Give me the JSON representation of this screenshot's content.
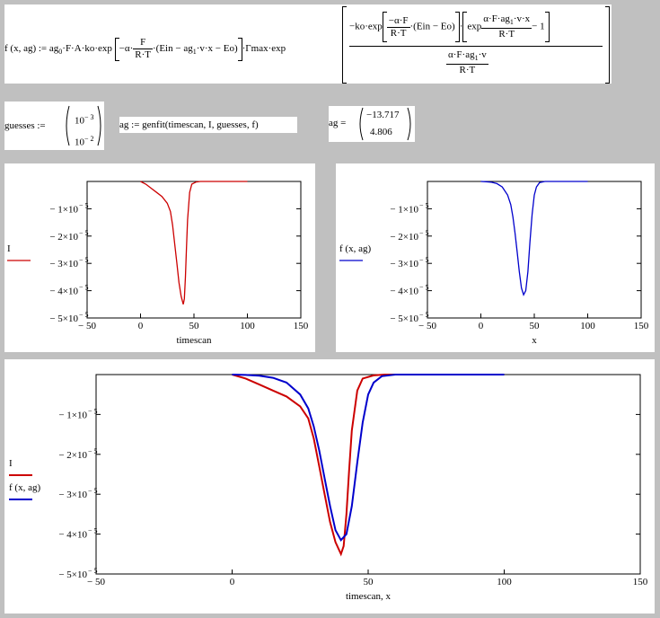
{
  "formula": {
    "lhs": "f (x, ag)",
    "assign": ":=",
    "prefactor": "ag",
    "prefactor_sub": "0",
    "terms": "·F·A·ko·exp",
    "exp1_minus_alpha": "−α·",
    "exp1_num": "F",
    "exp1_den": "R·T",
    "exp1_paren": "·(Ein  −  ag",
    "exp1_sub": "1",
    "exp1_tail": "·v·x  −  Eo)",
    "gamma": "·Γmax·exp",
    "big_num_lead": "−ko·exp",
    "inner_num": "−α·F",
    "inner_den": "R·T",
    "inner_tail": "·(Ein − Eo)",
    "exp2_lead": "exp",
    "exp2_num": "α·F·ag",
    "exp2_num_sub": "1",
    "exp2_num_tail": "·v·x",
    "exp2_den": "R·T",
    "minus_one": "− 1",
    "big_den_num": "α·F·ag",
    "big_den_sub": "1",
    "big_den_tail": "·v",
    "big_den_den": "R·T"
  },
  "guesses": {
    "label": "guesses :=",
    "v1_base": "10",
    "v1_exp": "− 3",
    "v2_base": "10",
    "v2_exp": "− 2"
  },
  "genfit": {
    "text": "ag := genfit(timescan, I, guesses, f)"
  },
  "result": {
    "label": "ag =",
    "v1": "−13.717",
    "v2": "4.806"
  },
  "plot1": {
    "xlabel": "timescan",
    "legend": "I"
  },
  "plot2": {
    "xlabel": "x",
    "legend": "f (x, ag)"
  },
  "plot3": {
    "xlabel": "timescan, x",
    "legend1": "I",
    "legend2": "f (x, ag)"
  },
  "chart_data": [
    {
      "type": "line",
      "xlim": [
        -50,
        150
      ],
      "ylim": [
        -5e-05,
        0
      ],
      "xticks": [
        "− 50",
        "0",
        "50",
        "100",
        "150"
      ],
      "yticks": [
        "− 1×10",
        "− 2×10",
        "− 3×10",
        "− 4×10",
        "− 5×10"
      ],
      "ytick_exp": "− 5",
      "xlabel": "timescan",
      "series": [
        {
          "name": "I",
          "color": "#cc0000",
          "x": [
            0,
            5,
            10,
            15,
            20,
            25,
            28,
            30,
            32,
            34,
            36,
            38,
            40,
            41,
            42,
            43,
            44,
            46,
            48,
            52,
            56,
            60,
            70,
            80,
            100
          ],
          "y": [
            0,
            -1e-06,
            -2.5e-06,
            -4e-06,
            -5.5e-06,
            -8e-06,
            -1.1e-05,
            -1.6e-05,
            -2.3e-05,
            -3e-05,
            -3.7e-05,
            -4.2e-05,
            -4.5e-05,
            -4.3e-05,
            -3.5e-05,
            -2.4e-05,
            -1.4e-05,
            -4e-06,
            -1e-06,
            -2e-07,
            0,
            0,
            0,
            0,
            0
          ]
        }
      ]
    },
    {
      "type": "line",
      "xlim": [
        -50,
        150
      ],
      "ylim": [
        -5e-05,
        0
      ],
      "xticks": [
        "− 50",
        "0",
        "50",
        "100",
        "150"
      ],
      "yticks": [
        "− 1×10",
        "− 2×10",
        "− 3×10",
        "− 4×10",
        "− 5×10"
      ],
      "ytick_exp": "− 5",
      "xlabel": "x",
      "series": [
        {
          "name": "f (x, ag)",
          "color": "#0000cc",
          "x": [
            0,
            5,
            10,
            15,
            20,
            25,
            28,
            30,
            32,
            34,
            36,
            38,
            40,
            42,
            44,
            46,
            48,
            50,
            52,
            55,
            60,
            70,
            80,
            100
          ],
          "y": [
            0,
            -1e-07,
            -3e-07,
            -8e-07,
            -2e-06,
            -5e-06,
            -8.5e-06,
            -1.3e-05,
            -1.9e-05,
            -2.6e-05,
            -3.3e-05,
            -3.9e-05,
            -4.15e-05,
            -4e-05,
            -3.3e-05,
            -2.2e-05,
            -1.2e-05,
            -5e-06,
            -2e-06,
            -4e-07,
            0,
            0,
            0,
            0
          ]
        }
      ]
    },
    {
      "type": "line",
      "xlim": [
        -50,
        150
      ],
      "ylim": [
        -5e-05,
        0
      ],
      "xticks": [
        "− 50",
        "0",
        "50",
        "100",
        "150"
      ],
      "yticks": [
        "− 1×10",
        "− 2×10",
        "− 3×10",
        "− 4×10",
        "− 5×10"
      ],
      "ytick_exp": "− 5",
      "xlabel": "timescan, x",
      "series": [
        {
          "name": "I",
          "color": "#cc0000",
          "x": [
            0,
            5,
            10,
            15,
            20,
            25,
            28,
            30,
            32,
            34,
            36,
            38,
            40,
            41,
            42,
            43,
            44,
            46,
            48,
            52,
            56,
            60,
            70,
            80,
            100
          ],
          "y": [
            0,
            -1e-06,
            -2.5e-06,
            -4e-06,
            -5.5e-06,
            -8e-06,
            -1.1e-05,
            -1.6e-05,
            -2.3e-05,
            -3e-05,
            -3.7e-05,
            -4.2e-05,
            -4.5e-05,
            -4.3e-05,
            -3.5e-05,
            -2.4e-05,
            -1.4e-05,
            -4e-06,
            -1e-06,
            -2e-07,
            0,
            0,
            0,
            0,
            0
          ]
        },
        {
          "name": "f (x, ag)",
          "color": "#0000cc",
          "x": [
            0,
            5,
            10,
            15,
            20,
            25,
            28,
            30,
            32,
            34,
            36,
            38,
            40,
            42,
            44,
            46,
            48,
            50,
            52,
            55,
            60,
            70,
            80,
            100
          ],
          "y": [
            0,
            -1e-07,
            -3e-07,
            -8e-07,
            -2e-06,
            -5e-06,
            -8.5e-06,
            -1.3e-05,
            -1.9e-05,
            -2.6e-05,
            -3.3e-05,
            -3.9e-05,
            -4.15e-05,
            -4e-05,
            -3.3e-05,
            -2.2e-05,
            -1.2e-05,
            -5e-06,
            -2e-06,
            -4e-07,
            0,
            0,
            0,
            0
          ]
        }
      ]
    }
  ]
}
